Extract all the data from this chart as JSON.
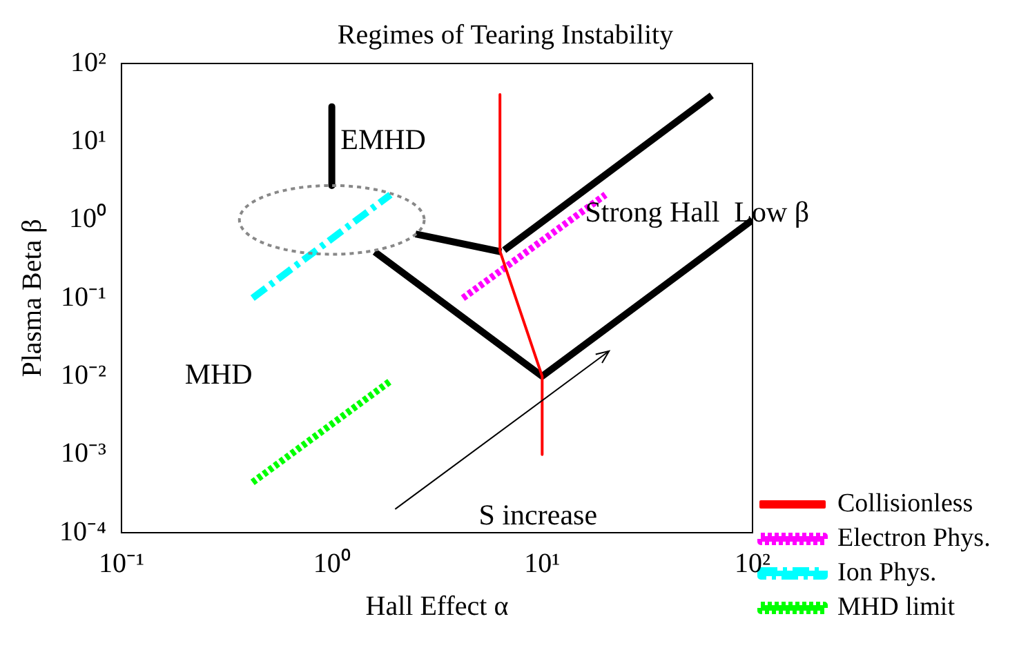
{
  "chart_data": {
    "type": "line",
    "title": "Regimes of Tearing Instability",
    "xlabel": "Hall Effect α",
    "ylabel": "Plasma Beta β",
    "log": "xy",
    "grid": false,
    "legend": "right",
    "marker": "none",
    "xlim": [
      0.1,
      100
    ],
    "ylim": [
      0.0001,
      100
    ],
    "xticks": [
      {
        "value": 0.1,
        "label": "10⁻¹"
      },
      {
        "value": 1,
        "label": "10⁰"
      },
      {
        "value": 10,
        "label": "10¹"
      },
      {
        "value": 100,
        "label": "10²"
      }
    ],
    "yticks": [
      {
        "value": 0.0001,
        "label": "10⁻⁴"
      },
      {
        "value": 0.001,
        "label": "10⁻³"
      },
      {
        "value": 0.01,
        "label": "10⁻²"
      },
      {
        "value": 0.1,
        "label": "10⁻¹"
      },
      {
        "value": 1,
        "label": "10⁰"
      },
      {
        "value": 10,
        "label": "10¹"
      },
      {
        "value": 100,
        "label": "10²"
      }
    ],
    "annotations": [
      "EMHD",
      "Strong Hall  Low β",
      "MHD",
      "S increase"
    ],
    "series": [
      {
        "name": "Collisionless",
        "color": "#ff0000",
        "line_style": "solid",
        "x": [
          6.3,
          6.3,
          10,
          10
        ],
        "values": [
          40,
          0.4,
          0.01,
          0.001
        ]
      },
      {
        "name": "Electron Phys.",
        "color": "#ff00ff",
        "line_style": "dotted",
        "x": [
          4.2,
          20
        ],
        "values": [
          0.1,
          2.1
        ]
      },
      {
        "name": "Ion Phys.",
        "color": "#00ffff",
        "line_style": "dashed",
        "x": [
          0.42,
          1.9
        ],
        "values": [
          0.1,
          2.1
        ]
      },
      {
        "name": "MHD limit",
        "color": "#00ff00",
        "line_style": "dotted",
        "x": [
          0.42,
          1.9
        ],
        "values": [
          0.00044,
          0.0087
        ]
      },
      {
        "color": "#000000",
        "line_style": "solid",
        "x": [
          1,
          1
        ],
        "values": [
          28,
          2.75
        ]
      },
      {
        "color": "#000000",
        "line_style": "solid",
        "x": [
          2.5,
          6.4
        ],
        "values": [
          0.66,
          0.39
        ]
      },
      {
        "color": "#000000",
        "line_style": "solid",
        "x": [
          6.6,
          64
        ],
        "values": [
          0.41,
          39
        ]
      },
      {
        "color": "#000000",
        "line_style": "solid",
        "x": [
          1.6,
          10,
          100
        ],
        "values": [
          0.39,
          0.01,
          1
        ]
      }
    ]
  }
}
